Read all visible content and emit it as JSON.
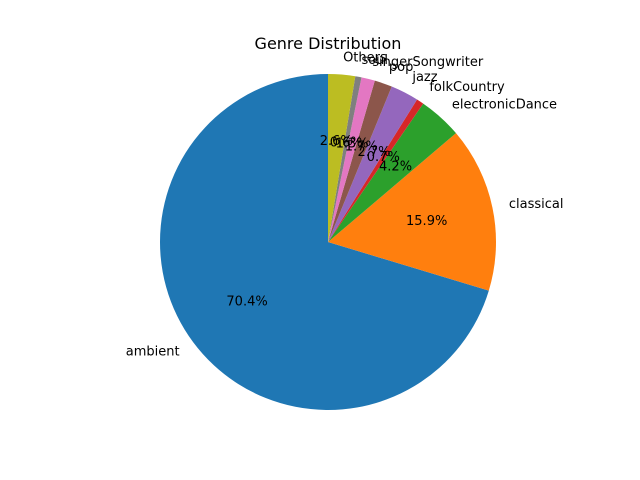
{
  "chart_data": {
    "type": "pie",
    "title": "Genre Distribution",
    "slices": [
      {
        "label": "ambient",
        "value": 70.4,
        "pct_label": "70.4%",
        "color": "#1f77b4"
      },
      {
        "label": "classical",
        "value": 15.9,
        "pct_label": "15.9%",
        "color": "#ff7f0e"
      },
      {
        "label": "electronicDance",
        "value": 4.2,
        "pct_label": "4.2%",
        "color": "#2ca02c"
      },
      {
        "label": "folkCountry",
        "value": 0.7,
        "pct_label": "0.7%",
        "color": "#d62728"
      },
      {
        "label": "jazz",
        "value": 2.7,
        "pct_label": "2.7%",
        "color": "#9467bd"
      },
      {
        "label": "pop",
        "value": 1.7,
        "pct_label": "1.7%",
        "color": "#8c564b"
      },
      {
        "label": "singerSongwriter",
        "value": 1.3,
        "pct_label": "1.3%",
        "color": "#e377c2"
      },
      {
        "label": "soul",
        "value": 0.6,
        "pct_label": "0.6%",
        "color": "#7f7f7f"
      },
      {
        "label": "Others",
        "value": 2.6,
        "pct_label": "2.6%",
        "color": "#bcbd22"
      }
    ],
    "start_angle_deg": 90,
    "direction": "counterclockwise",
    "legend": "none"
  }
}
